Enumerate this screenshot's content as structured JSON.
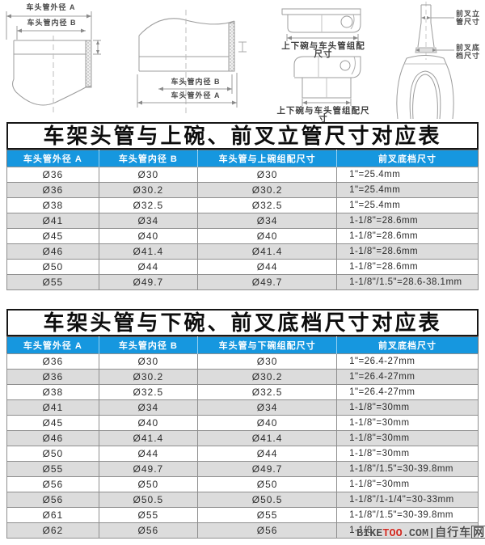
{
  "diagrams": {
    "labels": {
      "tube1_outer_a": "车头管外径 A",
      "tube1_inner_b": "车头管内径 B",
      "tube2_inner_b": "车头管内径 B",
      "tube2_outer_a": "车头管外径 A",
      "cup_upper_dim": "上下碗与车头管组配尺寸",
      "cup_lower_dim": "上下碗与车头管组配尺寸",
      "fork_steerer_dim": "前叉立\n管尺寸",
      "fork_crown_dim": "前叉底\n档尺寸"
    }
  },
  "table1": {
    "title": "车架头管与上碗、前叉立管尺寸对应表",
    "columns": [
      "车头管外径 A",
      "车头管内径 B",
      "车头管与上碗组配尺寸",
      "前叉底档尺寸"
    ],
    "rows": [
      [
        "Ø36",
        "Ø30",
        "Ø30",
        "1\"=25.4mm"
      ],
      [
        "Ø36",
        "Ø30.2",
        "Ø30.2",
        "1\"=25.4mm"
      ],
      [
        "Ø38",
        "Ø32.5",
        "Ø32.5",
        "1\"=25.4mm"
      ],
      [
        "Ø41",
        "Ø34",
        "Ø34",
        "1-1/8\"=28.6mm"
      ],
      [
        "Ø45",
        "Ø40",
        "Ø40",
        "1-1/8\"=28.6mm"
      ],
      [
        "Ø46",
        "Ø41.4",
        "Ø41.4",
        "1-1/8\"=28.6mm"
      ],
      [
        "Ø50",
        "Ø44",
        "Ø44",
        "1-1/8\"=28.6mm"
      ],
      [
        "Ø55",
        "Ø49.7",
        "Ø49.7",
        "1-1/8\"/1.5\"=28.6-38.1mm"
      ]
    ]
  },
  "table2": {
    "title": "车架头管与下碗、前叉底档尺寸对应表",
    "columns": [
      "车头管外径 A",
      "车头管内径 B",
      "车头管与下碗组配尺寸",
      "前叉底档尺寸"
    ],
    "rows": [
      [
        "Ø36",
        "Ø30",
        "Ø30",
        "1\"=26.4-27mm"
      ],
      [
        "Ø36",
        "Ø30.2",
        "Ø30.2",
        "1\"=26.4-27mm"
      ],
      [
        "Ø38",
        "Ø32.5",
        "Ø32.5",
        "1\"=26.4-27mm"
      ],
      [
        "Ø41",
        "Ø34",
        "Ø34",
        "1-1/8\"=30mm"
      ],
      [
        "Ø45",
        "Ø40",
        "Ø40",
        "1-1/8\"=30mm"
      ],
      [
        "Ø46",
        "Ø41.4",
        "Ø41.4",
        "1-1/8\"=30mm"
      ],
      [
        "Ø50",
        "Ø44",
        "Ø44",
        "1-1/8\"=30mm"
      ],
      [
        "Ø55",
        "Ø49.7",
        "Ø49.7",
        "1-1/8\"/1.5\"=30-39.8mm"
      ],
      [
        "Ø56",
        "Ø50",
        "Ø50",
        "1-1/8\"=30mm"
      ],
      [
        "Ø56",
        "Ø50.5",
        "Ø50.5",
        "1-1/8\"/1-1/4\"=30-33mm"
      ],
      [
        "Ø61",
        "Ø55",
        "Ø55",
        "1-1/8\"/1.5\"=30-39.8mm"
      ],
      [
        "Ø62",
        "Ø56",
        "Ø56",
        "1-1/8"
      ]
    ]
  },
  "watermark": {
    "prefix": "BIKE",
    "red_part": "TOO",
    "suffix": ".COM|",
    "cn_part": "自行车",
    "cn_boxed": "网"
  },
  "colors": {
    "header_blue": "#1697df",
    "row_alt_gray": "#dcdcdc",
    "watermark_red": "#cf2a21"
  }
}
